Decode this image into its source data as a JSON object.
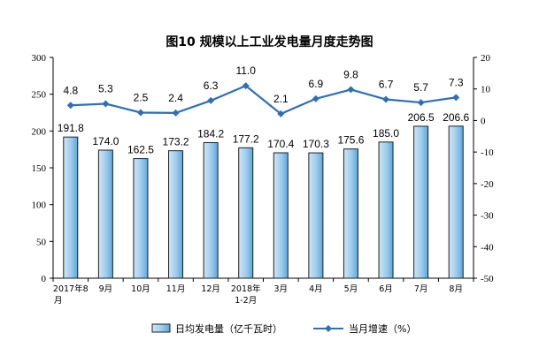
{
  "chart_data": {
    "type": "bar+line",
    "title": "图10  规模以上工业发电量月度走势图",
    "categories": [
      "2017年8月",
      "9月",
      "10月",
      "11月",
      "12月",
      "2018年1-2月",
      "3月",
      "4月",
      "5月",
      "6月",
      "7月",
      "8月"
    ],
    "series": [
      {
        "name": "日均发电量（亿千瓦时）",
        "type": "bar",
        "axis": "left",
        "values": [
          191.8,
          174.0,
          162.5,
          173.2,
          184.2,
          177.2,
          170.4,
          170.3,
          175.6,
          185.0,
          206.5,
          206.6
        ],
        "labels": [
          "191.8",
          "174.0",
          "162.5",
          "173.2",
          "184.2",
          "177.2",
          "170.4",
          "170.3",
          "175.6",
          "185.0",
          "206.5",
          "206.6"
        ]
      },
      {
        "name": "当月增速（%）",
        "type": "line",
        "axis": "right",
        "values": [
          4.8,
          5.3,
          2.5,
          2.4,
          6.3,
          11.0,
          2.1,
          6.9,
          9.8,
          6.7,
          5.7,
          7.3
        ],
        "labels": [
          "4.8",
          "5.3",
          "2.5",
          "2.4",
          "6.3",
          "11.0",
          "2.1",
          "6.9",
          "9.8",
          "6.7",
          "5.7",
          "7.3"
        ]
      }
    ],
    "y_left": {
      "min": 0,
      "max": 300,
      "ticks": [
        0,
        50,
        100,
        150,
        200,
        250,
        300
      ]
    },
    "y_right": {
      "min": -50,
      "max": 20,
      "ticks": [
        -50,
        -40,
        -30,
        -20,
        -10,
        0,
        10,
        20
      ]
    },
    "legend": {
      "placement": "bottom"
    },
    "grid": false,
    "colors": {
      "bar_fill_light": "#cfe6f7",
      "bar_fill_dark": "#5aa7dc",
      "bar_stroke": "#1f1f1f",
      "line": "#2e6fba",
      "axis": "#000000"
    }
  }
}
